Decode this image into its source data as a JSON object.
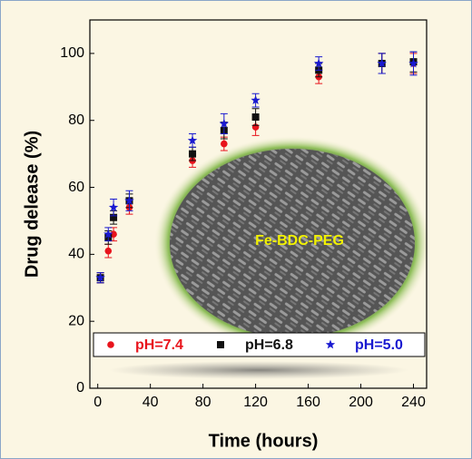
{
  "chart_data": {
    "type": "scatter",
    "x_label": "Time (hours)",
    "y_label": "Drug delease (%)",
    "annotation": "Fe-BDC-PEG",
    "x": [
      2,
      8,
      12,
      24,
      72,
      96,
      120,
      168,
      216,
      240
    ],
    "series": [
      {
        "name": "pH=7.4",
        "color": "#e8141c",
        "marker": "circle",
        "values": [
          33,
          41,
          46,
          54,
          68,
          73,
          78,
          93,
          97,
          97
        ],
        "errors": [
          1.5,
          2,
          2,
          2,
          2,
          2,
          2.5,
          2,
          3,
          3
        ]
      },
      {
        "name": "pH=6.8",
        "color": "#111111",
        "marker": "square",
        "values": [
          33,
          45,
          51,
          56,
          70,
          77,
          81,
          95,
          97,
          97.5
        ],
        "errors": [
          1.5,
          2,
          2,
          2,
          2,
          2.5,
          2.5,
          2,
          3,
          3
        ]
      },
      {
        "name": "pH=5.0",
        "color": "#1a1ad0",
        "marker": "star",
        "values": [
          33,
          46,
          54,
          56,
          74,
          79,
          86,
          97,
          97,
          97
        ],
        "errors": [
          1.5,
          2,
          2.5,
          3,
          2,
          3,
          2,
          2,
          3,
          3.5
        ]
      }
    ],
    "xlim": [
      -6,
      250
    ],
    "ylim": [
      0,
      110
    ],
    "xticks": [
      0,
      40,
      80,
      120,
      160,
      200,
      240
    ],
    "yticks": [
      0,
      20,
      40,
      60,
      80,
      100
    ],
    "legend": "bottom"
  }
}
